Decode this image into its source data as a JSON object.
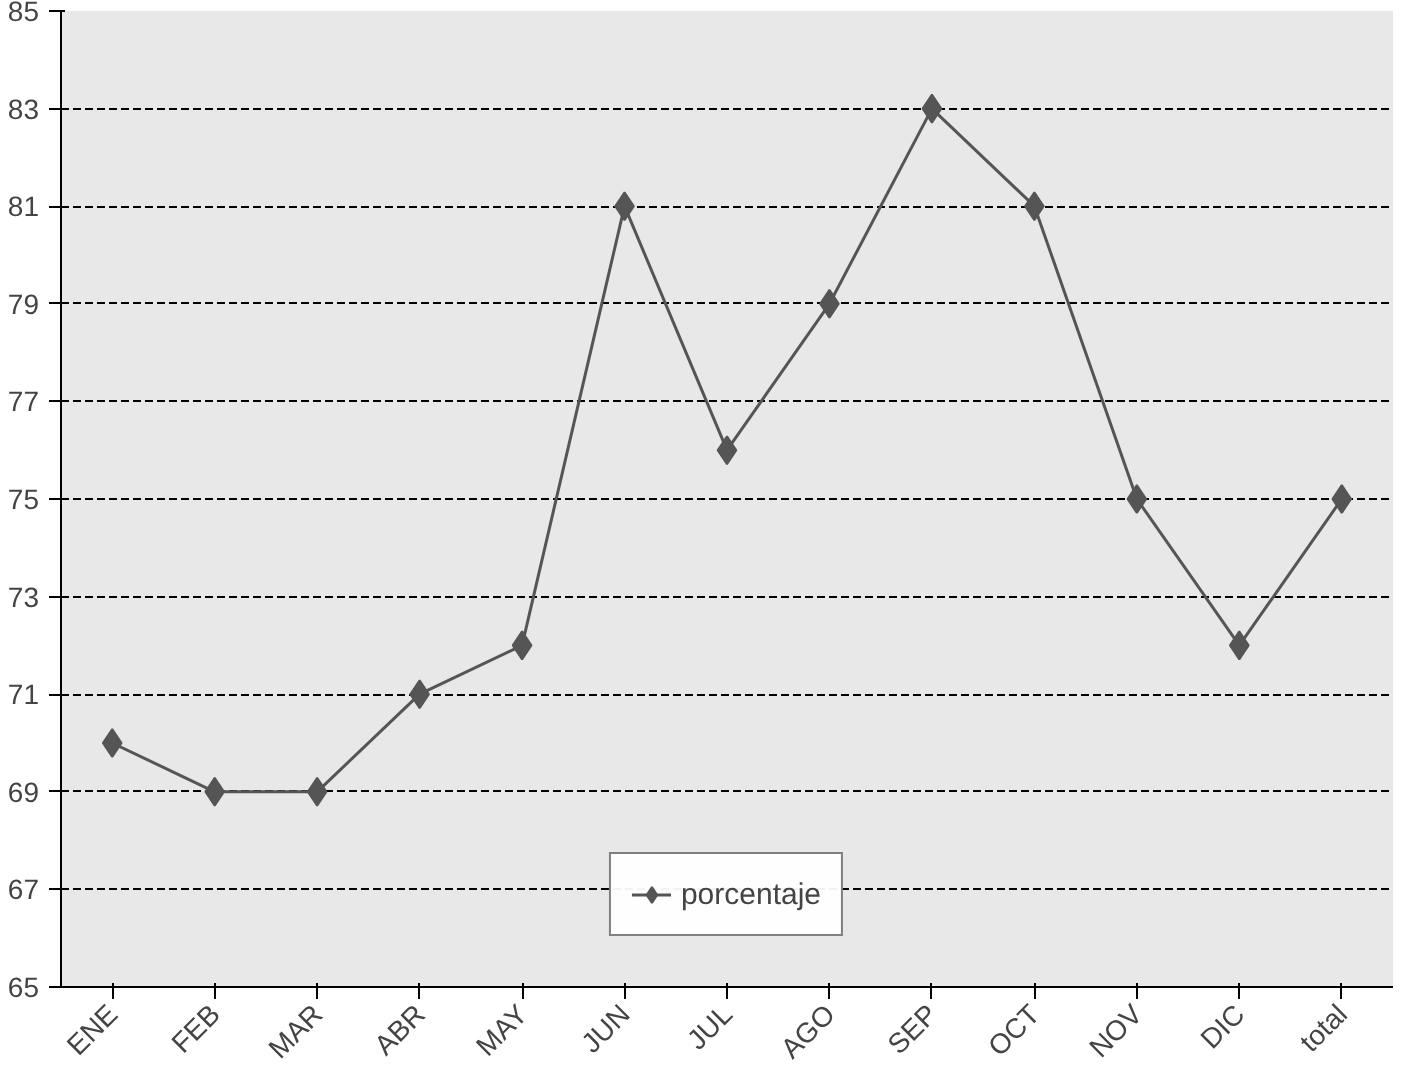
{
  "chart_data": {
    "type": "line",
    "categories": [
      "ENE",
      "FEB",
      "MAR",
      "ABR",
      "MAY",
      "JUN",
      "JUL",
      "AGO",
      "SEP",
      "OCT",
      "NOV",
      "DIC",
      "total"
    ],
    "series": [
      {
        "name": "porcentaje",
        "color": "#555555",
        "values": [
          70,
          69,
          69,
          71,
          72,
          81,
          76,
          79,
          83,
          81,
          75,
          72,
          75
        ]
      }
    ],
    "ylim": [
      65,
      85
    ],
    "yticks": [
      65,
      67,
      69,
      71,
      73,
      75,
      77,
      79,
      81,
      83,
      85
    ],
    "grid": "y",
    "legend": "bottom",
    "marker": "diamond",
    "line_style": "solid"
  }
}
